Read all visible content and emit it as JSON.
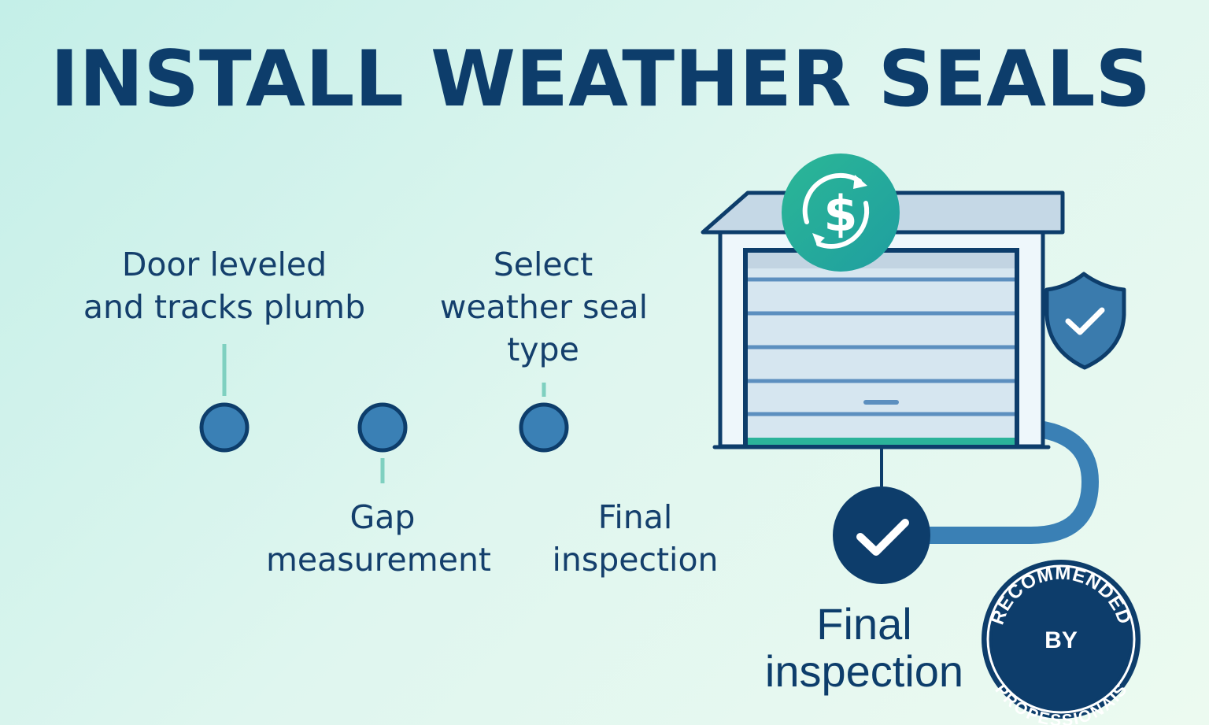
{
  "title": "INSTALL WEATHER SEALS",
  "steps": [
    {
      "lines": [
        "Door leveled",
        "and tracks plumb"
      ]
    },
    {
      "lines": [
        "Gap",
        "measurement"
      ]
    },
    {
      "lines": [
        "Select",
        "weather seal",
        "type"
      ]
    },
    {
      "lines": [
        "Final",
        "inspection"
      ]
    }
  ],
  "final_step": {
    "lines": [
      "Final",
      "inspection"
    ]
  },
  "badge": {
    "top_text": "RECOMMENDED",
    "center_text": "BY",
    "bottom_text": "PROPESSIONAIS"
  },
  "icons": [
    "dollar-cycle-icon",
    "shield-check-icon",
    "check-circle-icon",
    "garage-door-icon"
  ],
  "colors": {
    "navy": "#0d3d6b",
    "teal": "#25ad96",
    "blue": "#3a80b5",
    "green": "#4cc08a"
  }
}
